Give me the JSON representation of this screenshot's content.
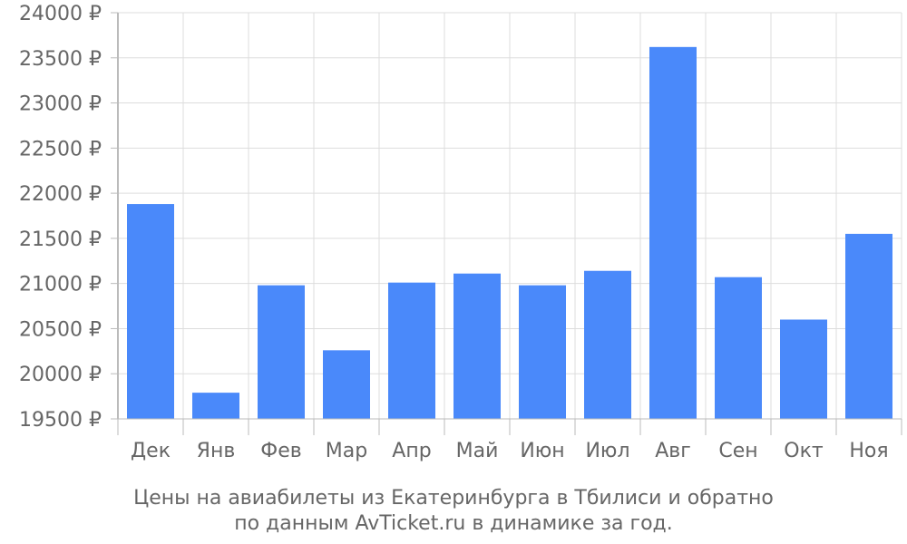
{
  "chart_data": {
    "type": "bar",
    "categories": [
      "Дек",
      "Янв",
      "Фев",
      "Мар",
      "Апр",
      "Май",
      "Июн",
      "Июл",
      "Авг",
      "Сен",
      "Окт",
      "Ноя"
    ],
    "values": [
      21880,
      19790,
      20980,
      20260,
      21010,
      21110,
      20980,
      21140,
      23620,
      21070,
      20600,
      21550
    ],
    "ylim": [
      19500,
      24000
    ],
    "yticks": [
      19500,
      20000,
      20500,
      21000,
      21500,
      22000,
      22500,
      23000,
      23500,
      24000
    ],
    "y_unit": "₽",
    "grid": true,
    "bar_color": "#4a89fa",
    "caption_line1": "Цены на авиабилеты из Екатеринбурга в Тбилиси и обратно",
    "caption_line2": "по данным AvTicket.ru в динамике за год."
  }
}
